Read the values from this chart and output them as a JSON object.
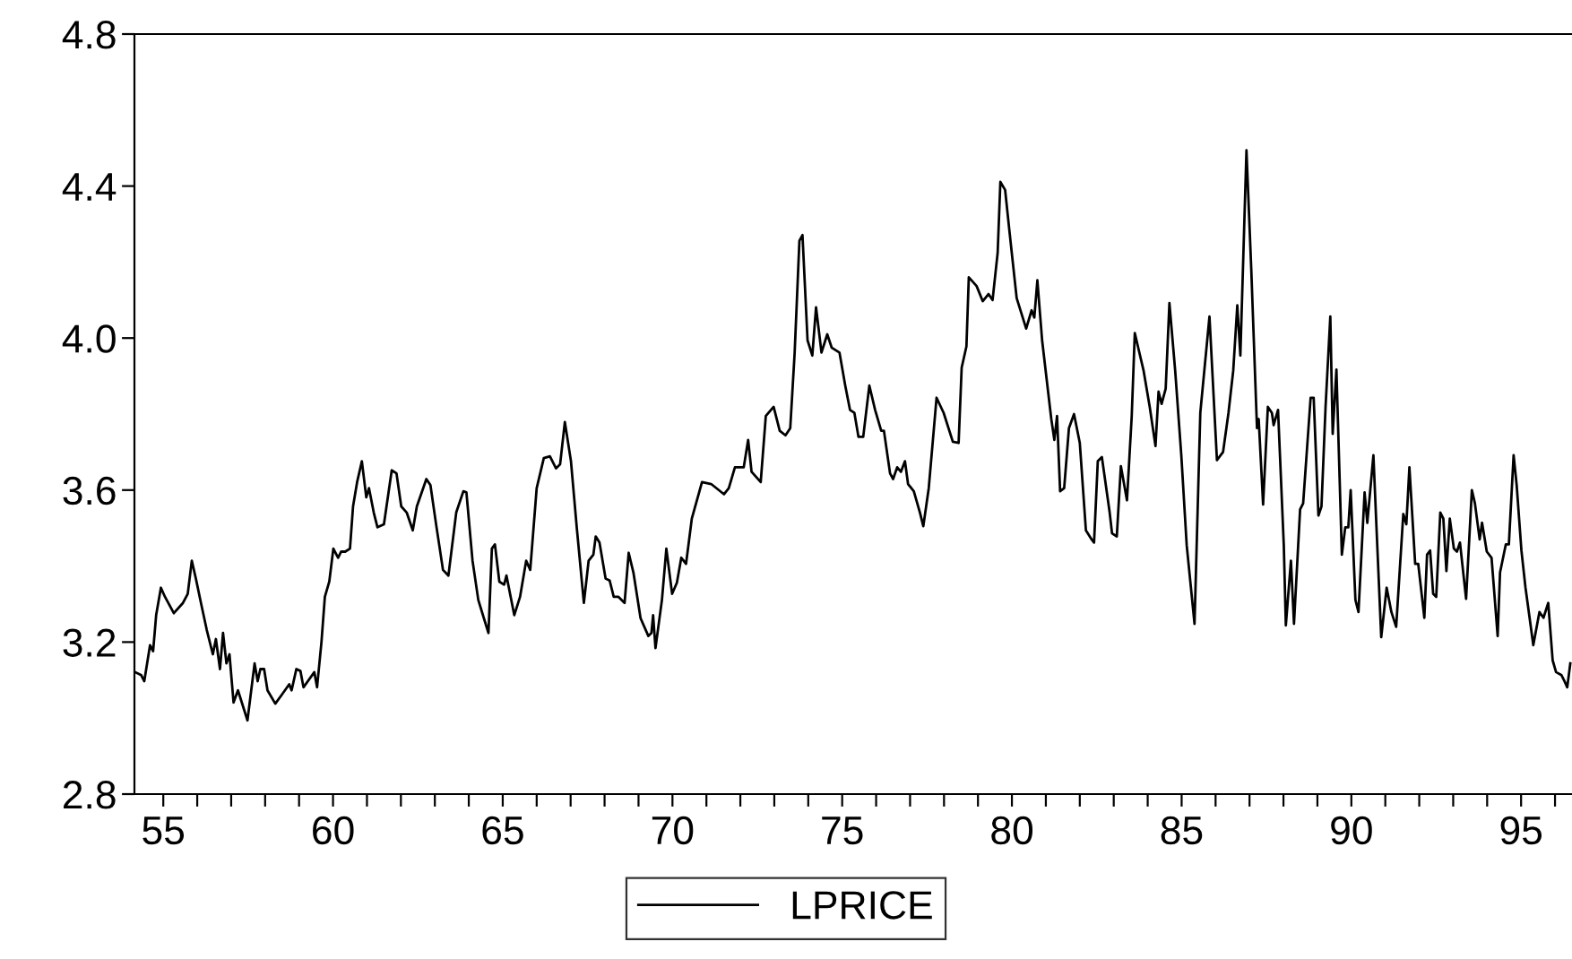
{
  "chart_data": {
    "type": "line",
    "legend": "bottom",
    "grid": false,
    "xlim": [
      54.15,
      96.5
    ],
    "ylim": [
      2.8,
      4.8
    ],
    "xticks": [
      {
        "value": 55,
        "label": "55"
      },
      {
        "value": 56,
        "label": null
      },
      {
        "value": 57,
        "label": null
      },
      {
        "value": 58,
        "label": null
      },
      {
        "value": 59,
        "label": null
      },
      {
        "value": 60,
        "label": "60"
      },
      {
        "value": 61,
        "label": null
      },
      {
        "value": 62,
        "label": null
      },
      {
        "value": 63,
        "label": null
      },
      {
        "value": 64,
        "label": null
      },
      {
        "value": 65,
        "label": "65"
      },
      {
        "value": 66,
        "label": null
      },
      {
        "value": 67,
        "label": null
      },
      {
        "value": 68,
        "label": null
      },
      {
        "value": 69,
        "label": null
      },
      {
        "value": 70,
        "label": "70"
      },
      {
        "value": 71,
        "label": null
      },
      {
        "value": 72,
        "label": null
      },
      {
        "value": 73,
        "label": null
      },
      {
        "value": 74,
        "label": null
      },
      {
        "value": 75,
        "label": "75"
      },
      {
        "value": 76,
        "label": null
      },
      {
        "value": 77,
        "label": null
      },
      {
        "value": 78,
        "label": null
      },
      {
        "value": 79,
        "label": null
      },
      {
        "value": 80,
        "label": "80"
      },
      {
        "value": 81,
        "label": null
      },
      {
        "value": 82,
        "label": null
      },
      {
        "value": 83,
        "label": null
      },
      {
        "value": 84,
        "label": null
      },
      {
        "value": 85,
        "label": "85"
      },
      {
        "value": 86,
        "label": null
      },
      {
        "value": 87,
        "label": null
      },
      {
        "value": 88,
        "label": null
      },
      {
        "value": 89,
        "label": null
      },
      {
        "value": 90,
        "label": "90"
      },
      {
        "value": 91,
        "label": null
      },
      {
        "value": 92,
        "label": null
      },
      {
        "value": 93,
        "label": null
      },
      {
        "value": 94,
        "label": null
      },
      {
        "value": 95,
        "label": "95"
      },
      {
        "value": 96,
        "label": null
      }
    ],
    "yticks": [
      2.8,
      3.2,
      3.6,
      {
        "value": 4.0,
        "label": "4.0"
      },
      4.4,
      4.8
    ],
    "series": [
      {
        "name": "LPRICE",
        "color": "#000000",
        "x": [
          54.17,
          54.35,
          54.44,
          54.61,
          54.7,
          54.79,
          54.93,
          55.05,
          55.31,
          55.58,
          55.72,
          55.84,
          55.96,
          56.11,
          56.28,
          56.46,
          56.55,
          56.67,
          56.76,
          56.86,
          56.95,
          57.07,
          57.2,
          57.48,
          57.69,
          57.78,
          57.86,
          57.97,
          58.07,
          58.3,
          58.48,
          58.71,
          58.78,
          58.92,
          59.04,
          59.13,
          59.45,
          59.53,
          59.66,
          59.76,
          59.89,
          60.01,
          60.15,
          60.24,
          60.36,
          60.5,
          60.59,
          60.71,
          60.85,
          60.98,
          61.06,
          61.2,
          61.31,
          61.5,
          61.73,
          61.87,
          62.01,
          62.17,
          62.35,
          62.47,
          62.75,
          62.87,
          63.05,
          63.24,
          63.4,
          63.63,
          63.84,
          63.93,
          64.11,
          64.28,
          64.44,
          64.58,
          64.68,
          64.77,
          64.9,
          65.04,
          65.11,
          65.34,
          65.51,
          65.69,
          65.81,
          66.0,
          66.21,
          66.39,
          66.57,
          66.69,
          66.83,
          67.01,
          67.18,
          67.39,
          67.53,
          67.67,
          67.74,
          67.85,
          68.03,
          68.15,
          68.27,
          68.41,
          68.59,
          68.71,
          68.85,
          69.06,
          69.29,
          69.38,
          69.43,
          69.5,
          69.69,
          69.82,
          69.99,
          70.13,
          70.26,
          70.4,
          70.57,
          70.87,
          71.14,
          71.52,
          71.66,
          71.84,
          72.1,
          72.23,
          72.33,
          72.6,
          72.75,
          72.98,
          73.16,
          73.33,
          73.47,
          73.6,
          73.74,
          73.83,
          73.98,
          74.12,
          74.23,
          74.39,
          74.56,
          74.69,
          74.92,
          75.09,
          75.23,
          75.36,
          75.48,
          75.62,
          75.8,
          75.97,
          76.15,
          76.23,
          76.41,
          76.5,
          76.62,
          76.73,
          76.85,
          76.94,
          77.11,
          77.29,
          77.39,
          77.55,
          77.78,
          77.99,
          78.26,
          78.43,
          78.52,
          78.66,
          78.73,
          78.96,
          79.14,
          79.31,
          79.43,
          79.58,
          79.66,
          79.8,
          79.93,
          80.14,
          80.28,
          80.42,
          80.58,
          80.66,
          80.75,
          80.89,
          81.16,
          81.25,
          81.33,
          81.42,
          81.54,
          81.68,
          81.83,
          82.0,
          82.18,
          82.35,
          82.42,
          82.53,
          82.65,
          82.88,
          82.95,
          83.09,
          83.21,
          83.39,
          83.53,
          83.62,
          83.88,
          84.06,
          84.23,
          84.32,
          84.41,
          84.53,
          84.64,
          84.81,
          84.99,
          85.15,
          85.38,
          85.55,
          85.82,
          86.04,
          86.22,
          86.38,
          86.52,
          86.64,
          86.73,
          86.91,
          87.05,
          87.22,
          87.27,
          87.4,
          87.54,
          87.66,
          87.71,
          87.84,
          88.01,
          88.07,
          88.22,
          88.31,
          88.49,
          88.58,
          88.8,
          88.89,
          89.03,
          89.12,
          89.24,
          89.38,
          89.45,
          89.56,
          89.72,
          89.82,
          89.91,
          89.98,
          90.12,
          90.21,
          90.39,
          90.47,
          90.65,
          90.74,
          90.88,
          91.04,
          91.18,
          91.32,
          91.53,
          91.62,
          91.71,
          91.88,
          91.97,
          92.15,
          92.23,
          92.32,
          92.41,
          92.5,
          92.62,
          92.71,
          92.8,
          92.9,
          93.02,
          93.11,
          93.2,
          93.38,
          93.55,
          93.64,
          93.78,
          93.85,
          93.99,
          94.13,
          94.31,
          94.38,
          94.55,
          94.64,
          94.78,
          94.87,
          95.01,
          95.13,
          95.36,
          95.54,
          95.66,
          95.8,
          95.93,
          96.03,
          96.19,
          96.28,
          96.36,
          96.45
        ],
        "values": [
          3.121,
          3.113,
          3.097,
          3.192,
          3.176,
          3.271,
          3.343,
          3.319,
          3.276,
          3.303,
          3.327,
          3.414,
          3.367,
          3.303,
          3.232,
          3.168,
          3.208,
          3.129,
          3.224,
          3.144,
          3.168,
          3.041,
          3.073,
          2.994,
          3.144,
          3.097,
          3.129,
          3.129,
          3.073,
          3.038,
          3.06,
          3.089,
          3.073,
          3.129,
          3.124,
          3.081,
          3.121,
          3.081,
          3.2,
          3.319,
          3.359,
          3.446,
          3.422,
          3.438,
          3.438,
          3.446,
          3.557,
          3.621,
          3.676,
          3.581,
          3.605,
          3.541,
          3.502,
          3.51,
          3.652,
          3.644,
          3.557,
          3.541,
          3.494,
          3.557,
          3.629,
          3.613,
          3.502,
          3.39,
          3.375,
          3.541,
          3.597,
          3.594,
          3.414,
          3.311,
          3.264,
          3.224,
          3.446,
          3.457,
          3.359,
          3.351,
          3.375,
          3.271,
          3.319,
          3.414,
          3.39,
          3.605,
          3.684,
          3.689,
          3.657,
          3.668,
          3.779,
          3.676,
          3.502,
          3.303,
          3.414,
          3.43,
          3.478,
          3.462,
          3.367,
          3.362,
          3.319,
          3.319,
          3.303,
          3.435,
          3.383,
          3.263,
          3.216,
          3.224,
          3.271,
          3.184,
          3.311,
          3.446,
          3.327,
          3.356,
          3.422,
          3.406,
          3.525,
          3.621,
          3.616,
          3.589,
          3.605,
          3.66,
          3.66,
          3.732,
          3.648,
          3.621,
          3.795,
          3.819,
          3.756,
          3.744,
          3.763,
          3.962,
          4.256,
          4.271,
          3.994,
          3.954,
          4.081,
          3.962,
          4.01,
          3.975,
          3.962,
          3.875,
          3.811,
          3.803,
          3.74,
          3.74,
          3.875,
          3.811,
          3.756,
          3.756,
          3.644,
          3.629,
          3.66,
          3.648,
          3.676,
          3.616,
          3.597,
          3.541,
          3.505,
          3.605,
          3.843,
          3.803,
          3.727,
          3.724,
          3.922,
          3.978,
          4.16,
          4.137,
          4.097,
          4.116,
          4.1,
          4.224,
          4.411,
          4.39,
          4.279,
          4.105,
          4.065,
          4.025,
          4.073,
          4.054,
          4.152,
          3.994,
          3.787,
          3.732,
          3.795,
          3.597,
          3.605,
          3.763,
          3.8,
          3.724,
          3.494,
          3.47,
          3.462,
          3.676,
          3.687,
          3.541,
          3.486,
          3.478,
          3.663,
          3.573,
          3.795,
          4.013,
          3.914,
          3.819,
          3.716,
          3.859,
          3.827,
          3.867,
          4.092,
          3.914,
          3.692,
          3.454,
          3.248,
          3.803,
          4.057,
          3.679,
          3.7,
          3.803,
          3.914,
          4.086,
          3.954,
          4.494,
          4.184,
          3.763,
          3.787,
          3.562,
          3.819,
          3.803,
          3.771,
          3.811,
          3.454,
          3.244,
          3.414,
          3.248,
          3.549,
          3.565,
          3.843,
          3.843,
          3.533,
          3.557,
          3.819,
          4.057,
          3.748,
          3.917,
          3.43,
          3.502,
          3.502,
          3.6,
          3.311,
          3.279,
          3.594,
          3.514,
          3.692,
          3.502,
          3.213,
          3.343,
          3.279,
          3.24,
          3.537,
          3.51,
          3.66,
          3.406,
          3.406,
          3.264,
          3.43,
          3.441,
          3.327,
          3.319,
          3.541,
          3.525,
          3.387,
          3.525,
          3.446,
          3.438,
          3.462,
          3.314,
          3.6,
          3.565,
          3.47,
          3.514,
          3.438,
          3.422,
          3.216,
          3.383,
          3.457,
          3.457,
          3.692,
          3.613,
          3.441,
          3.343,
          3.192,
          3.279,
          3.264,
          3.303,
          3.152,
          3.121,
          3.113,
          3.097,
          3.081,
          3.144
        ]
      }
    ]
  }
}
